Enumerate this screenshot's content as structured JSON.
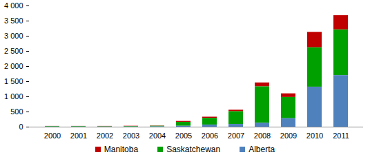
{
  "chart_data": {
    "type": "bar",
    "stacked": true,
    "grid": false,
    "legend": "bottom",
    "categories": [
      "2000",
      "2001",
      "2002",
      "2003",
      "2004",
      "2005",
      "2006",
      "2007",
      "2008",
      "2009",
      "2010",
      "2011"
    ],
    "series": [
      {
        "name": "Manitoba",
        "color": "#c00000",
        "values": [
          5,
          5,
          10,
          10,
          10,
          30,
          40,
          50,
          130,
          120,
          510,
          470
        ]
      },
      {
        "name": "Saskatchewan",
        "color": "#00a000",
        "values": [
          15,
          15,
          10,
          15,
          20,
          130,
          220,
          420,
          1200,
          700,
          1300,
          1510
        ]
      },
      {
        "name": "Alberta",
        "color": "#4f81bd",
        "values": [
          5,
          5,
          5,
          5,
          10,
          30,
          70,
          90,
          130,
          280,
          1320,
          1700
        ]
      }
    ],
    "ylim": [
      0,
      4000
    ],
    "yticks": [
      0,
      500,
      {
        "value": 1000,
        "label": "1 000"
      },
      {
        "value": 1500,
        "label": "1 500"
      },
      {
        "value": 2000,
        "label": "2 000"
      },
      {
        "value": 2500,
        "label": "2 500"
      },
      {
        "value": 3000,
        "label": "3 000"
      },
      {
        "value": 3500,
        "label": "3 500"
      },
      {
        "value": 4000,
        "label": "4 000"
      }
    ]
  }
}
